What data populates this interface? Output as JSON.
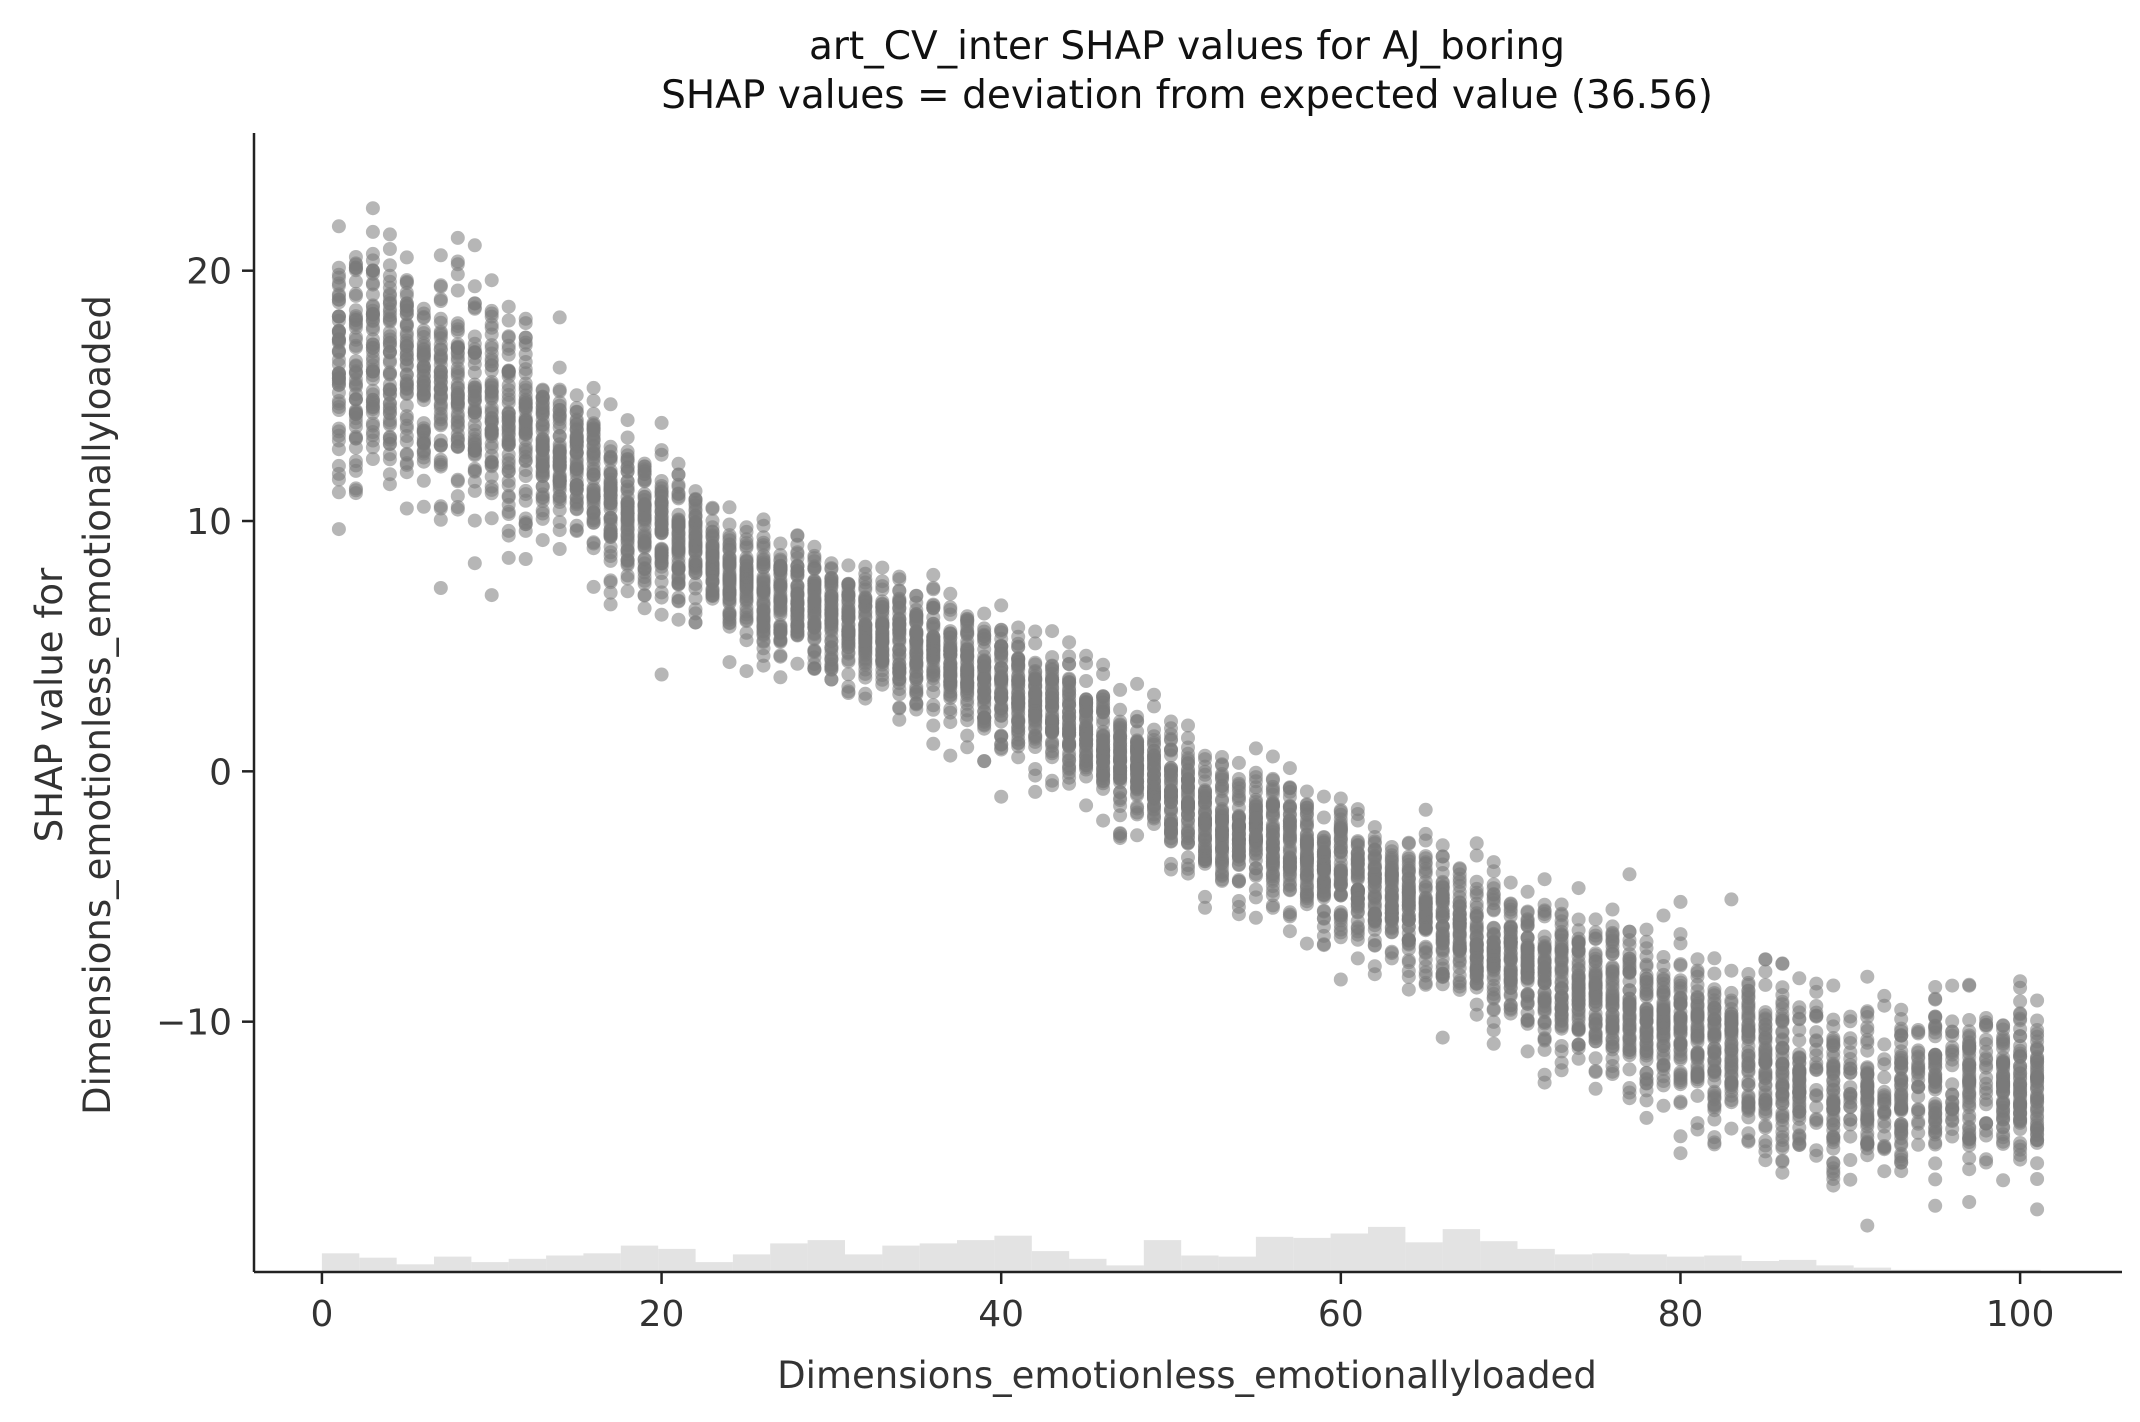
{
  "chart_data": {
    "type": "scatter",
    "title": "art_CV_inter SHAP values for AJ_boring",
    "subtitle": "SHAP values = deviation from expected value (36.56)",
    "xlabel": "Dimensions_emotionless_emotionallyloaded",
    "ylabel_line1": "SHAP value for",
    "ylabel_line2": "Dimensions_emotionless_emotionallyloaded",
    "xlim": [
      -4,
      106
    ],
    "ylim": [
      -20,
      25.5
    ],
    "xticks": [
      0,
      20,
      40,
      60,
      80,
      100
    ],
    "xtick_labels": [
      "0",
      "20",
      "40",
      "60",
      "80",
      "100"
    ],
    "yticks": [
      -10,
      0,
      10,
      20
    ],
    "ytick_labels": [
      "−10",
      "0",
      "10",
      "20"
    ],
    "grid": false,
    "point_color": "#7a7a7a",
    "histogram_color": "#e3e3e3",
    "trend": {
      "x": [
        1,
        5,
        10,
        15,
        20,
        25,
        30,
        35,
        40,
        45,
        50,
        55,
        60,
        65,
        70,
        75,
        80,
        85,
        90,
        95,
        101
      ],
      "y": [
        16.5,
        16.0,
        14.5,
        12.0,
        9.5,
        7.5,
        6.0,
        5.0,
        3.5,
        1.5,
        -1.0,
        -2.8,
        -4.0,
        -5.5,
        -7.5,
        -9.0,
        -10.5,
        -11.8,
        -12.8,
        -12.5,
        -12.5
      ],
      "spread": [
        2.6,
        2.4,
        2.2,
        1.6,
        1.4,
        1.2,
        1.2,
        1.2,
        1.2,
        1.2,
        1.2,
        1.3,
        1.3,
        1.4,
        1.4,
        1.5,
        1.6,
        1.8,
        1.8,
        1.6,
        1.6
      ]
    },
    "histogram": {
      "bin_start": 0,
      "bin_width": 2.2,
      "relative_heights": [
        0.34,
        0.26,
        0.14,
        0.28,
        0.18,
        0.24,
        0.3,
        0.34,
        0.48,
        0.42,
        0.18,
        0.32,
        0.52,
        0.58,
        0.32,
        0.48,
        0.52,
        0.58,
        0.66,
        0.38,
        0.24,
        0.12,
        0.58,
        0.3,
        0.28,
        0.64,
        0.62,
        0.7,
        0.82,
        0.54,
        0.78,
        0.56,
        0.42,
        0.32,
        0.34,
        0.32,
        0.28,
        0.3,
        0.2,
        0.22,
        0.12,
        0.08,
        0.04,
        0.04,
        0.04,
        0.04
      ]
    }
  }
}
